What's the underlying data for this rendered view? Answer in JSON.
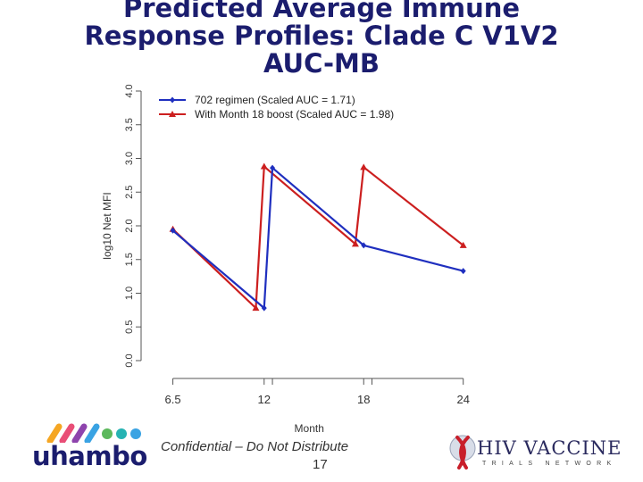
{
  "slide": {
    "title_lines": [
      "Predicted Average Immune",
      "Response Profiles: Clade C V1V2",
      "AUC-MB"
    ],
    "confidential": "Confidential – Do Not Distribute",
    "page_number": "17",
    "logo_left_text": "uhambo",
    "logo_right_text": "HIV VACCINE",
    "logo_right_subtext": "TRIALS NETWORK"
  },
  "chart_data": {
    "type": "line",
    "title": "Predicted Average Immune Response Profiles: Clade C V1V2 AUC-MB",
    "xlabel": "Month",
    "ylabel": "log10 Net MFI",
    "xlim": [
      6.5,
      24
    ],
    "ylim": [
      0,
      4
    ],
    "x_ticks": [
      6.5,
      12,
      18,
      24
    ],
    "x_tick_labels": [
      "6.5",
      "12",
      "18",
      "24"
    ],
    "y_ticks": [
      0,
      0.5,
      1,
      1.5,
      2,
      2.5,
      3,
      3.5,
      4
    ],
    "y_tick_labels": [
      "0.0",
      "0.5",
      "1.0",
      "1.5",
      "2.0",
      "2.5",
      "3.0",
      "3.5",
      "4.0"
    ],
    "legend_position": "top-left",
    "grid": false,
    "series": [
      {
        "name": "702 regimen (Scaled AUC = 1.71)",
        "color": "#1f2fbf",
        "marker": "diamond",
        "x": [
          6.5,
          12,
          12.5,
          18,
          24
        ],
        "y": [
          1.93,
          0.78,
          2.86,
          1.71,
          1.33
        ]
      },
      {
        "name": "With Month 18 boost (Scaled AUC = 1.98)",
        "color": "#cc1f1f",
        "marker": "triangle",
        "x": [
          6.5,
          11.5,
          12,
          17.5,
          18,
          24
        ],
        "y": [
          1.95,
          0.78,
          2.88,
          1.73,
          2.87,
          1.71
        ]
      }
    ]
  }
}
